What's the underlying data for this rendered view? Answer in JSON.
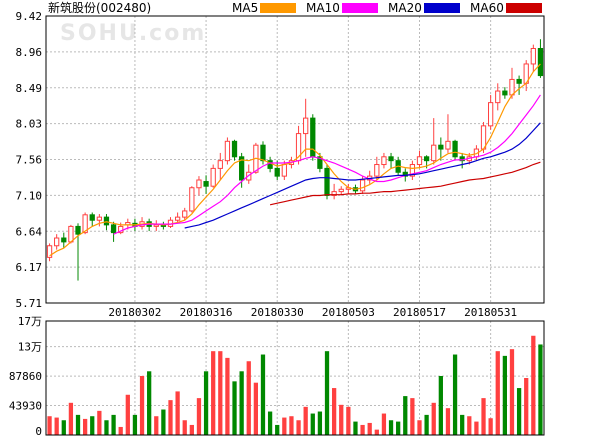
{
  "title": "新筑股份(002480)",
  "watermark": "SOHU.com",
  "legend": [
    {
      "label": "MA5",
      "color": "#ff9900"
    },
    {
      "label": "MA10",
      "color": "#ff00ff"
    },
    {
      "label": "MA20",
      "color": "#0000cc"
    },
    {
      "label": "MA60",
      "color": "#cc0000"
    }
  ],
  "colors": {
    "up": "#ff4040",
    "down": "#008800",
    "grid": "#bbbbbb",
    "frame": "#000000"
  },
  "chart_data": [
    {
      "type": "candlestick",
      "ylim": [
        5.71,
        9.42
      ],
      "y_ticks": [
        "9.42",
        "8.96",
        "8.49",
        "8.03",
        "7.56",
        "7.10",
        "6.64",
        "6.17",
        "5.71"
      ],
      "x_ticks": [
        {
          "label": "20180302",
          "index": 12
        },
        {
          "label": "20180316",
          "index": 22
        },
        {
          "label": "20180330",
          "index": 32
        },
        {
          "label": "20180503",
          "index": 42
        },
        {
          "label": "20180517",
          "index": 52
        },
        {
          "label": "20180531",
          "index": 62
        }
      ],
      "candles": [
        [
          6.3,
          6.45,
          6.25,
          6.48
        ],
        [
          6.45,
          6.55,
          6.4,
          6.6
        ],
        [
          6.55,
          6.5,
          6.42,
          6.62
        ],
        [
          6.5,
          6.7,
          6.48,
          6.72
        ],
        [
          6.7,
          6.6,
          6.0,
          6.74
        ],
        [
          6.62,
          6.85,
          6.6,
          6.88
        ],
        [
          6.85,
          6.78,
          6.7,
          6.88
        ],
        [
          6.78,
          6.82,
          6.7,
          6.86
        ],
        [
          6.82,
          6.72,
          6.65,
          6.86
        ],
        [
          6.72,
          6.62,
          6.5,
          6.76
        ],
        [
          6.62,
          6.7,
          6.6,
          6.75
        ],
        [
          6.72,
          6.75,
          6.66,
          6.8
        ],
        [
          6.74,
          6.7,
          6.64,
          6.8
        ],
        [
          6.7,
          6.76,
          6.66,
          6.82
        ],
        [
          6.76,
          6.7,
          6.64,
          6.8
        ],
        [
          6.7,
          6.72,
          6.64,
          6.78
        ],
        [
          6.72,
          6.7,
          6.66,
          6.76
        ],
        [
          6.7,
          6.78,
          6.68,
          6.82
        ],
        [
          6.78,
          6.82,
          6.74,
          6.88
        ],
        [
          6.82,
          6.9,
          6.78,
          6.94
        ],
        [
          6.9,
          7.2,
          6.88,
          7.22
        ],
        [
          7.2,
          7.3,
          7.1,
          7.35
        ],
        [
          7.28,
          7.22,
          7.12,
          7.36
        ],
        [
          7.22,
          7.45,
          7.2,
          7.5
        ],
        [
          7.45,
          7.55,
          7.3,
          7.65
        ],
        [
          7.55,
          7.8,
          7.5,
          7.85
        ],
        [
          7.8,
          7.6,
          7.55,
          7.82
        ],
        [
          7.6,
          7.3,
          7.2,
          7.65
        ],
        [
          7.3,
          7.4,
          7.25,
          7.5
        ],
        [
          7.4,
          7.75,
          7.38,
          7.78
        ],
        [
          7.75,
          7.55,
          7.5,
          7.8
        ],
        [
          7.55,
          7.45,
          7.4,
          7.6
        ],
        [
          7.45,
          7.35,
          7.3,
          7.55
        ],
        [
          7.35,
          7.5,
          7.3,
          7.55
        ],
        [
          7.5,
          7.55,
          7.45,
          7.6
        ],
        [
          7.55,
          7.9,
          7.5,
          8.0
        ],
        [
          7.9,
          8.1,
          7.6,
          8.35
        ],
        [
          8.1,
          7.6,
          7.55,
          8.15
        ],
        [
          7.6,
          7.45,
          7.4,
          7.65
        ],
        [
          7.45,
          7.1,
          7.05,
          7.5
        ],
        [
          7.1,
          7.15,
          7.05,
          7.25
        ],
        [
          7.15,
          7.18,
          7.1,
          7.22
        ],
        [
          7.18,
          7.2,
          7.12,
          7.25
        ],
        [
          7.2,
          7.16,
          7.12,
          7.24
        ],
        [
          7.16,
          7.3,
          7.12,
          7.35
        ],
        [
          7.3,
          7.35,
          7.25,
          7.42
        ],
        [
          7.35,
          7.5,
          7.3,
          7.6
        ],
        [
          7.5,
          7.6,
          7.45,
          7.65
        ],
        [
          7.6,
          7.55,
          7.45,
          7.65
        ],
        [
          7.55,
          7.4,
          7.35,
          7.6
        ],
        [
          7.4,
          7.35,
          7.28,
          7.45
        ],
        [
          7.35,
          7.5,
          7.3,
          7.55
        ],
        [
          7.5,
          7.6,
          7.45,
          7.68
        ],
        [
          7.6,
          7.55,
          7.45,
          7.62
        ],
        [
          7.55,
          7.75,
          7.5,
          8.1
        ],
        [
          7.75,
          7.7,
          7.55,
          7.85
        ],
        [
          7.7,
          7.8,
          7.65,
          8.15
        ],
        [
          7.8,
          7.6,
          7.55,
          7.82
        ],
        [
          7.6,
          7.55,
          7.45,
          7.65
        ],
        [
          7.55,
          7.6,
          7.5,
          7.65
        ],
        [
          7.6,
          7.7,
          7.55,
          7.75
        ],
        [
          7.7,
          8.0,
          7.65,
          8.05
        ],
        [
          8.0,
          8.3,
          7.95,
          8.4
        ],
        [
          8.3,
          8.45,
          8.2,
          8.55
        ],
        [
          8.45,
          8.4,
          8.35,
          8.5
        ],
        [
          8.4,
          8.6,
          8.35,
          8.75
        ],
        [
          8.6,
          8.55,
          8.4,
          8.65
        ],
        [
          8.55,
          8.8,
          8.45,
          8.85
        ],
        [
          8.8,
          9.0,
          8.7,
          9.05
        ],
        [
          9.0,
          8.65,
          8.62,
          9.12
        ]
      ],
      "series": [
        {
          "name": "MA5",
          "values": [
            6.32,
            6.38,
            6.42,
            6.5,
            6.58,
            6.64,
            6.7,
            6.74,
            6.76,
            6.74,
            6.72,
            6.72,
            6.72,
            6.73,
            6.74,
            6.73,
            6.72,
            6.73,
            6.75,
            6.78,
            6.86,
            6.98,
            7.08,
            7.18,
            7.3,
            7.42,
            7.52,
            7.56,
            7.55,
            7.58,
            7.56,
            7.52,
            7.48,
            7.5,
            7.52,
            7.6,
            7.7,
            7.7,
            7.62,
            7.5,
            7.38,
            7.28,
            7.2,
            7.18,
            7.2,
            7.24,
            7.3,
            7.38,
            7.45,
            7.48,
            7.46,
            7.45,
            7.46,
            7.48,
            7.52,
            7.58,
            7.64,
            7.66,
            7.64,
            7.62,
            7.64,
            7.7,
            7.85,
            8.05,
            8.25,
            8.4,
            8.48,
            8.55,
            8.7,
            8.8
          ]
        },
        {
          "name": "MA10",
          "values": [
            null,
            null,
            null,
            null,
            null,
            null,
            null,
            null,
            null,
            6.6,
            6.64,
            6.68,
            6.7,
            6.72,
            6.73,
            6.73,
            6.73,
            6.73,
            6.74,
            6.75,
            6.78,
            6.84,
            6.9,
            6.96,
            7.02,
            7.1,
            7.2,
            7.28,
            7.36,
            7.42,
            7.48,
            7.52,
            7.52,
            7.52,
            7.53,
            7.55,
            7.58,
            7.6,
            7.58,
            7.55,
            7.52,
            7.48,
            7.44,
            7.4,
            7.35,
            7.31,
            7.28,
            7.28,
            7.3,
            7.33,
            7.36,
            7.38,
            7.4,
            7.42,
            7.46,
            7.5,
            7.53,
            7.56,
            7.56,
            7.58,
            7.6,
            7.62,
            7.66,
            7.72,
            7.8,
            7.9,
            8.02,
            8.14,
            8.26,
            8.4
          ]
        },
        {
          "name": "MA20",
          "values": [
            null,
            null,
            null,
            null,
            null,
            null,
            null,
            null,
            null,
            null,
            null,
            null,
            null,
            null,
            null,
            null,
            null,
            null,
            null,
            6.68,
            6.7,
            6.72,
            6.75,
            6.78,
            6.82,
            6.86,
            6.9,
            6.94,
            6.98,
            7.02,
            7.06,
            7.1,
            7.14,
            7.18,
            7.22,
            7.26,
            7.3,
            7.32,
            7.33,
            7.33,
            7.32,
            7.31,
            7.3,
            7.3,
            7.31,
            7.32,
            7.33,
            7.34,
            7.35,
            7.36,
            7.36,
            7.37,
            7.38,
            7.4,
            7.42,
            7.44,
            7.46,
            7.48,
            7.5,
            7.52,
            7.55,
            7.58,
            7.6,
            7.63,
            7.66,
            7.7,
            7.76,
            7.84,
            7.94,
            8.04
          ]
        },
        {
          "name": "MA60",
          "values": [
            null,
            null,
            null,
            null,
            null,
            null,
            null,
            null,
            null,
            null,
            null,
            null,
            null,
            null,
            null,
            null,
            null,
            null,
            null,
            null,
            null,
            null,
            null,
            null,
            null,
            null,
            null,
            null,
            null,
            null,
            null,
            6.98,
            7.0,
            7.02,
            7.04,
            7.06,
            7.08,
            7.1,
            7.1,
            7.11,
            7.11,
            7.11,
            7.12,
            7.12,
            7.13,
            7.13,
            7.14,
            7.15,
            7.15,
            7.16,
            7.17,
            7.18,
            7.19,
            7.2,
            7.21,
            7.22,
            7.24,
            7.26,
            7.28,
            7.3,
            7.31,
            7.32,
            7.34,
            7.36,
            7.38,
            7.4,
            7.43,
            7.46,
            7.5,
            7.53
          ]
        }
      ]
    },
    {
      "type": "bar",
      "ylim": [
        0,
        170000
      ],
      "y_ticks": [
        {
          "label": "17万",
          "value": 170000
        },
        {
          "label": "13万",
          "value": 131790
        },
        {
          "label": "87860",
          "value": 87860
        },
        {
          "label": "43930",
          "value": 43930
        },
        {
          "label": "0",
          "value": 0
        }
      ],
      "values": [
        28000,
        26000,
        22000,
        48000,
        30000,
        24000,
        28000,
        36000,
        22000,
        30000,
        12000,
        60000,
        30000,
        88000,
        95000,
        28000,
        38000,
        52000,
        65000,
        22000,
        15000,
        55000,
        95000,
        125000,
        125000,
        115000,
        80000,
        95000,
        110000,
        78000,
        120000,
        35000,
        15000,
        26000,
        28000,
        22000,
        42000,
        32000,
        35000,
        125000,
        70000,
        45000,
        42000,
        20000,
        15000,
        18000,
        8000,
        32000,
        22000,
        20000,
        58000,
        55000,
        22000,
        30000,
        48000,
        88000,
        40000,
        120000,
        30000,
        28000,
        20000,
        55000,
        25000,
        125000,
        118000,
        128000,
        70000,
        85000,
        148000,
        135000
      ]
    }
  ]
}
